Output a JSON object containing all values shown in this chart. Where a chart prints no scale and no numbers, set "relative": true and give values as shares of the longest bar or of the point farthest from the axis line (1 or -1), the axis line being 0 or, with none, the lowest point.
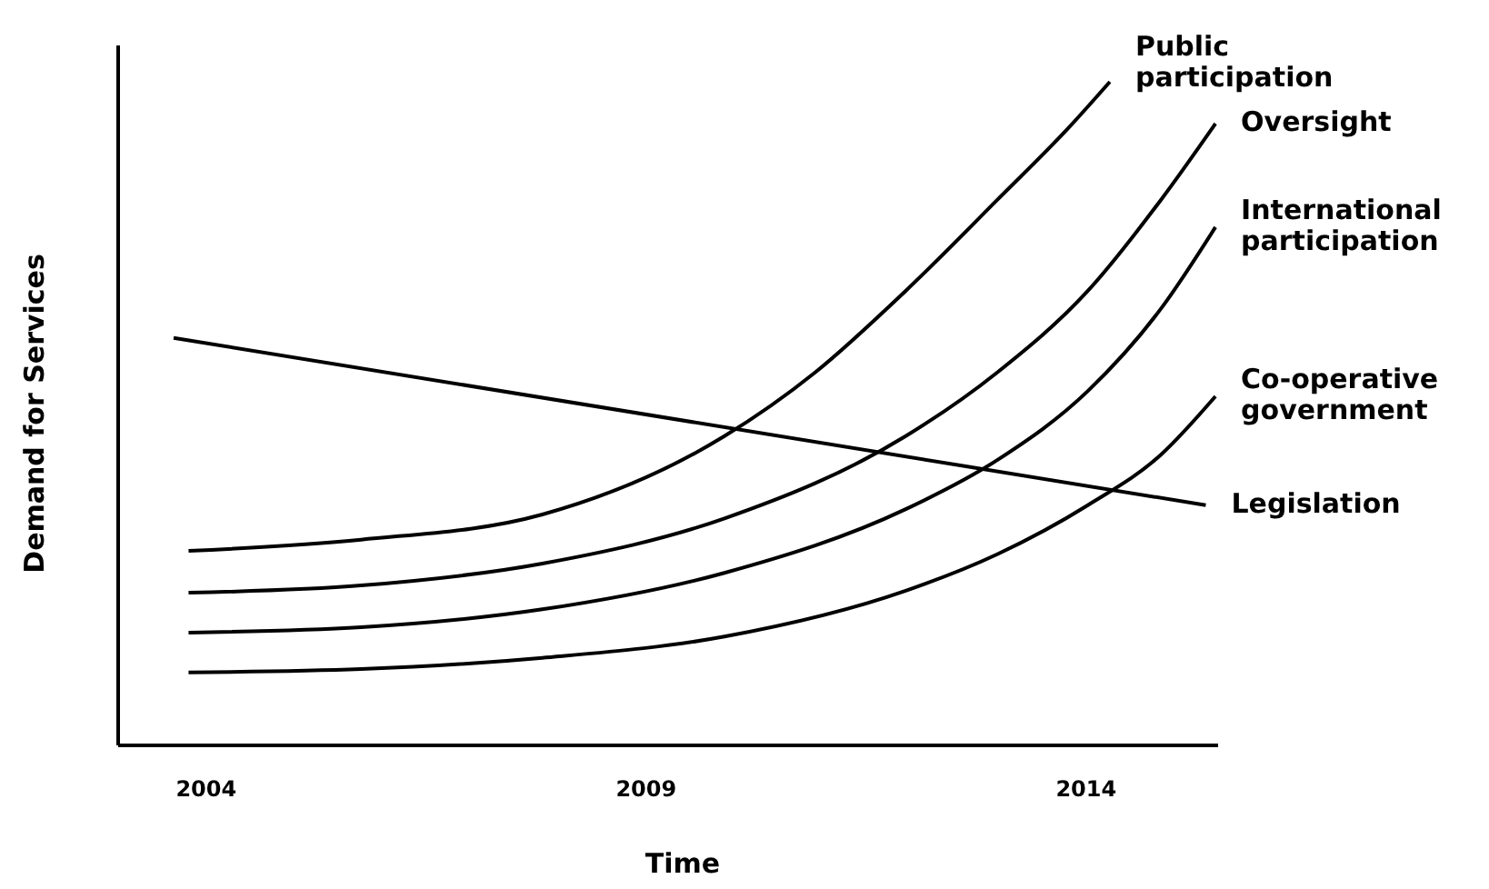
{
  "chart_data": {
    "type": "line",
    "relative": true,
    "xlabel": "Time",
    "ylabel": "Demand for Services",
    "xlim": [
      2003,
      2015.5
    ],
    "xticks": [
      2004,
      2009,
      2014
    ],
    "marker": "none",
    "line_style": "solid",
    "series": [
      {
        "name": "Public participation",
        "color": "#000000",
        "x": [
          2003.8,
          2005.76,
          2007.82,
          2009.89,
          2010.92,
          2011.95,
          2012.99,
          2013.81,
          2014.27
        ],
        "values": [
          0.293,
          0.31,
          0.348,
          0.466,
          0.562,
          0.685,
          0.822,
          0.932,
          1
        ]
      },
      {
        "name": "Oversight",
        "color": "#000000",
        "x": [
          2003.8,
          2005.76,
          2007.82,
          2009.89,
          2011.95,
          2012.99,
          2014.02,
          2014.85,
          2015.47
        ],
        "values": [
          0.23,
          0.241,
          0.274,
          0.342,
          0.466,
          0.562,
          0.685,
          0.822,
          0.937
        ]
      },
      {
        "name": "International participation",
        "color": "#000000",
        "x": [
          2003.8,
          2005.76,
          2007.82,
          2009.89,
          2011.95,
          2012.99,
          2014.02,
          2014.85,
          2015.47
        ],
        "values": [
          0.17,
          0.178,
          0.205,
          0.26,
          0.356,
          0.43,
          0.534,
          0.658,
          0.781
        ]
      },
      {
        "name": "Co-operative government",
        "color": "#000000",
        "x": [
          2003.8,
          2005.76,
          2007.82,
          2009.89,
          2011.95,
          2012.99,
          2014.02,
          2014.85,
          2015.47
        ],
        "values": [
          0.11,
          0.115,
          0.132,
          0.164,
          0.233,
          0.288,
          0.362,
          0.438,
          0.526
        ]
      },
      {
        "name": "Legislation",
        "color": "#000000",
        "x": [
          2003.63,
          2015.36
        ],
        "values": [
          0.614,
          0.362
        ]
      }
    ]
  }
}
